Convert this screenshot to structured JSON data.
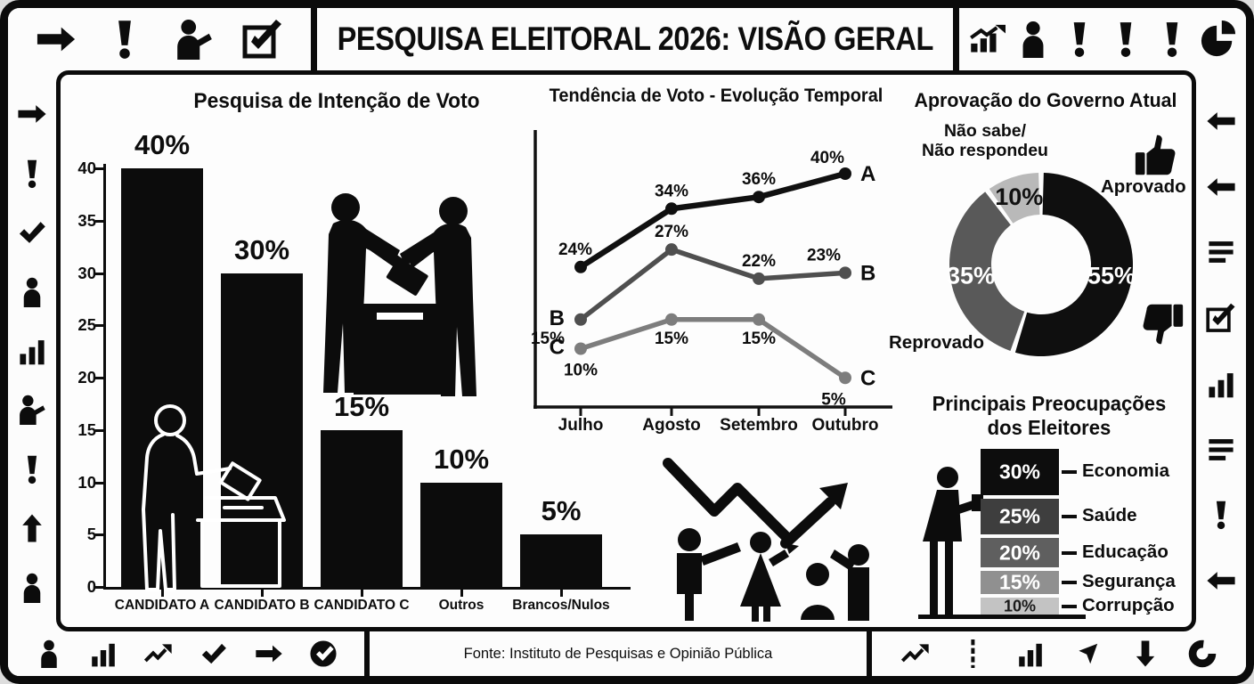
{
  "title": "PESQUISA ELEITORAL 2026: VISÃO GERAL",
  "footer": {
    "source": "Fonte: Instituto de Pesquisas e Opinião Pública"
  },
  "palette": {
    "ink": "#0d0d0d",
    "dark_gray": "#4f4f4f",
    "mid_gray": "#7d7d7d",
    "light_gray": "#b9b9b9",
    "paper": "#fdfdfd"
  },
  "chart_data": [
    {
      "type": "bar",
      "title": "Pesquisa de Intenção de Voto",
      "categories": [
        "CANDIDATO A",
        "CANDIDATO B",
        "CANDIDATO C",
        "Outros",
        "Brancos/Nulos"
      ],
      "values": [
        40,
        30,
        15,
        10,
        5
      ],
      "value_labels": [
        "40%",
        "30%",
        "15%",
        "10%",
        "5%"
      ],
      "yticks": [
        0,
        5,
        10,
        15,
        20,
        25,
        30,
        35,
        40
      ],
      "ylim": [
        0,
        42
      ],
      "bar_color": "#0c0c0c",
      "grid": false
    },
    {
      "type": "line",
      "title": "Tendência de Voto - Evolução Temporal",
      "x": [
        "Julho",
        "Agosto",
        "Setembro",
        "Outubro"
      ],
      "series": [
        {
          "name": "A",
          "values": [
            24,
            34,
            36,
            40
          ],
          "labels": [
            "24%",
            "34%",
            "36%",
            "40%"
          ],
          "color": "#101010"
        },
        {
          "name": "B",
          "values": [
            15,
            27,
            22,
            23
          ],
          "labels": [
            "15%",
            "27%",
            "22%",
            "23%"
          ],
          "color": "#4f4f4f"
        },
        {
          "name": "C",
          "values": [
            10,
            15,
            15,
            5
          ],
          "labels": [
            "10%",
            "15%",
            "15%",
            "5%"
          ],
          "color": "#7d7d7d"
        }
      ],
      "ylim": [
        0,
        45
      ],
      "legend_position": "inline-end-labels"
    },
    {
      "type": "pie",
      "donut": true,
      "title": "Aprovação do Governo Atual",
      "slices": [
        {
          "label": "Aprovado",
          "value": 55,
          "pct_label": "55%",
          "color": "#0f0f0f",
          "text_color": "#ffffff"
        },
        {
          "label": "Reprovado",
          "value": 35,
          "pct_label": "35%",
          "color": "#595959",
          "text_color": "#ffffff"
        },
        {
          "label": "Não sabe/Não respondeu",
          "label_lines": [
            "Não sabe/",
            "Não respondeu"
          ],
          "value": 10,
          "pct_label": "10%",
          "color": "#b9b9b9",
          "text_color": "#111111"
        }
      ]
    },
    {
      "type": "bar",
      "title_lines": [
        "Principais Preocupações",
        "dos Eleitores"
      ],
      "categories": [
        "Economia",
        "Saúde",
        "Educação",
        "Segurança",
        "Corrupção"
      ],
      "values": [
        30,
        25,
        20,
        15,
        10
      ],
      "value_labels": [
        "30%",
        "25%",
        "20%",
        "15%",
        "10%"
      ],
      "colors": [
        "#0d0d0d",
        "#3e3e3e",
        "#5f5f5f",
        "#909090",
        "#c3c3c3"
      ]
    }
  ],
  "border_icons": {
    "top_left": [
      "arrow-right",
      "exclamation",
      "person-pointing",
      "checkbox-check"
    ],
    "top_right": [
      "trend-bars",
      "person",
      "exclamation",
      "exclamation",
      "exclamation",
      "pie-chart"
    ],
    "left": [
      "arrow-right",
      "exclamation",
      "checkmark",
      "person",
      "bar-chart",
      "person-pointing",
      "exclamation",
      "arrow-up",
      "person"
    ],
    "right": [
      "arrow-left",
      "arrow-left",
      "list-lines",
      "checkbox-check",
      "bar-chart",
      "list-lines",
      "exclamation",
      "arrow-left"
    ],
    "bottom_left": [
      "person",
      "bar-chart",
      "trend-up",
      "checkmark",
      "arrow-right",
      "check-circle"
    ],
    "bottom_right": [
      "trend-up",
      "dashed-line",
      "bar-chart",
      "cursor-arrow",
      "arrow-down",
      "donut-chart"
    ]
  }
}
